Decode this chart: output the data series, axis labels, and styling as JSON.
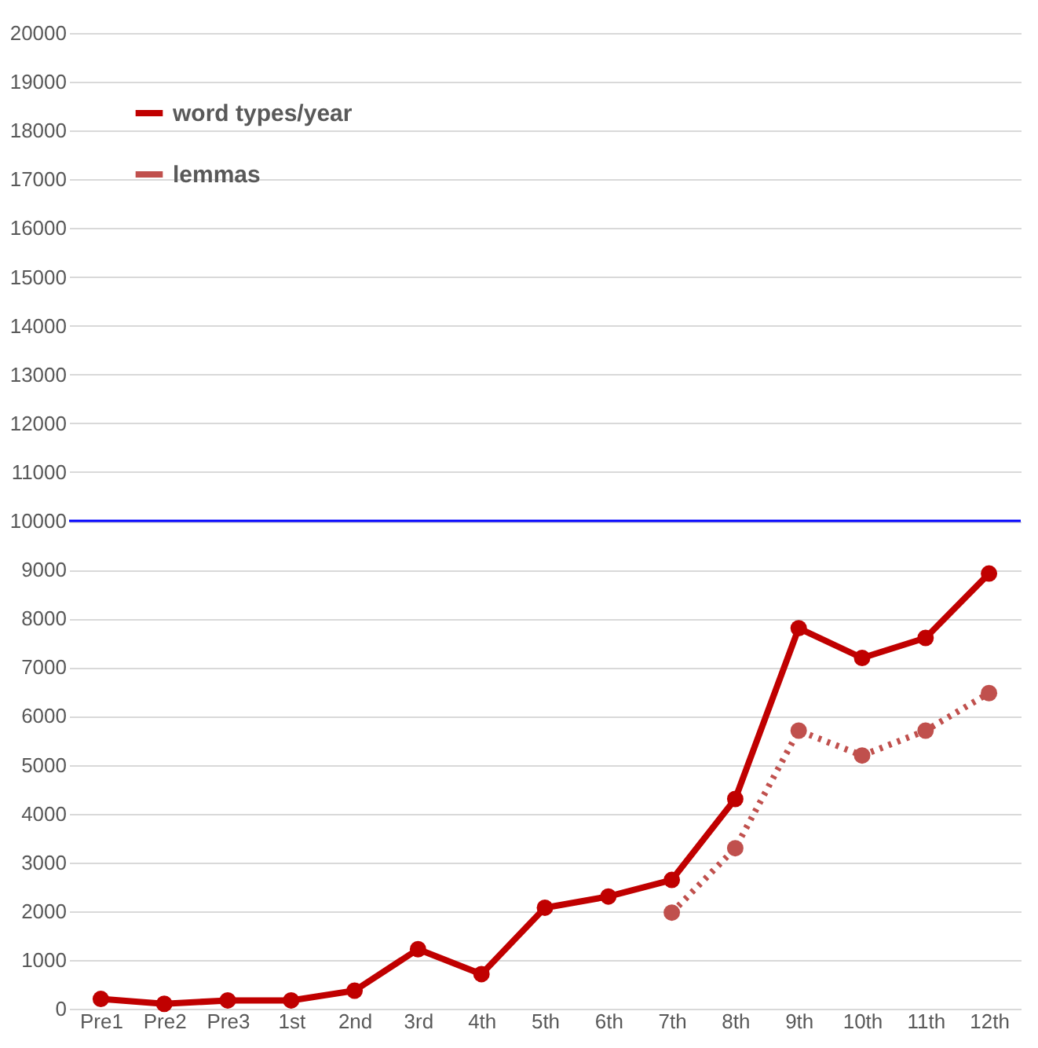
{
  "chart_data": {
    "type": "line",
    "categories": [
      "Pre1",
      "Pre2",
      "Pre3",
      "1st",
      "2nd",
      "3rd",
      "4th",
      "5th",
      "6th",
      "7th",
      "8th",
      "9th",
      "10th",
      "11th",
      "12th"
    ],
    "series": [
      {
        "name": "word types/year",
        "color": "#c00000",
        "line_style": "solid",
        "values": [
          200,
          100,
          170,
          170,
          370,
          1220,
          710,
          2070,
          2300,
          2640,
          4300,
          7800,
          7190,
          7600,
          8920
        ]
      },
      {
        "name": "lemmas",
        "color": "#c0504d",
        "line_style": "dotted",
        "values": [
          null,
          null,
          null,
          null,
          null,
          null,
          null,
          null,
          null,
          1970,
          3290,
          5700,
          5190,
          5700,
          6470
        ]
      }
    ],
    "ylim": [
      0,
      20000
    ],
    "yticks": [
      0,
      1000,
      2000,
      3000,
      4000,
      5000,
      6000,
      7000,
      8000,
      9000,
      10000,
      11000,
      12000,
      13000,
      14000,
      15000,
      16000,
      17000,
      18000,
      19000,
      20000
    ],
    "grid": "y",
    "legend": "top left",
    "marker": "circle",
    "ref_lines": [
      {
        "axis": "y",
        "value": 10000,
        "color": "#0000ff"
      }
    ]
  }
}
